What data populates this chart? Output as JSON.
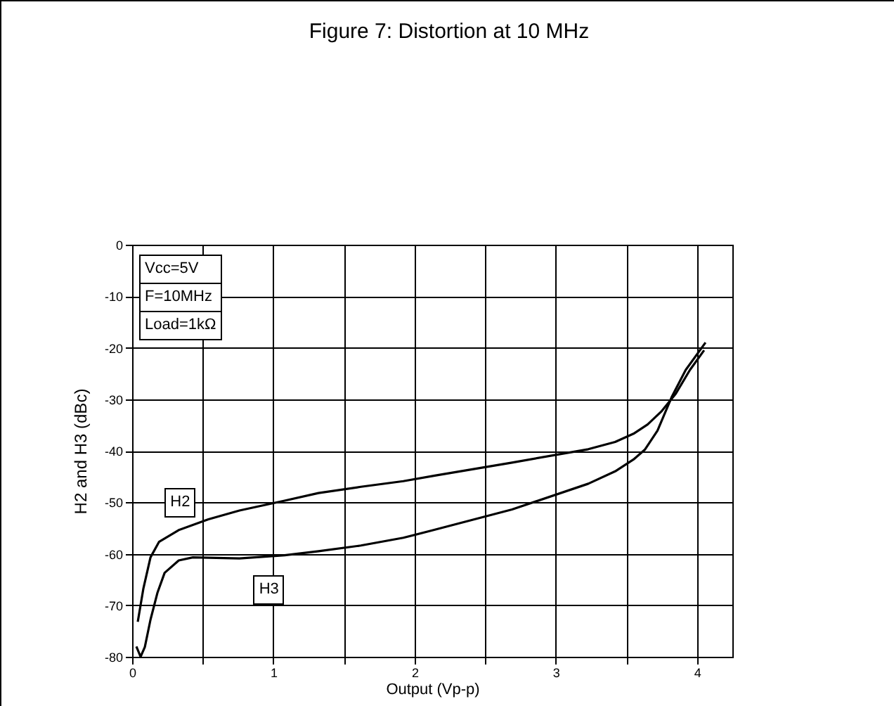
{
  "chart_data": {
    "type": "line",
    "title": "Figure 7: Distortion at 10 MHz",
    "xlabel": "Output  (Vp-p)",
    "ylabel": "H2 and H3  (dBc)",
    "annotations": [
      "Vcc=5V",
      "F=10MHz",
      "Load=1kΩ"
    ],
    "xlim": [
      0,
      4.25
    ],
    "xticks": [
      0,
      {
        "value": 0.5,
        "label": null
      },
      1,
      {
        "value": 1.5,
        "label": null
      },
      2,
      {
        "value": 2.5,
        "label": null
      },
      3,
      {
        "value": 3.5,
        "label": null
      },
      4
    ],
    "ylim": [
      -80,
      0
    ],
    "yticks": [
      -80,
      -70,
      -60,
      -50,
      -40,
      -30,
      -20,
      -10,
      0
    ],
    "grid": true,
    "legend": false,
    "marker": "none",
    "line_style": "solid",
    "series": [
      {
        "name": "H2",
        "color": "#000000",
        "x": [
          0.04,
          0.08,
          0.13,
          0.19,
          0.33,
          0.54,
          0.76,
          1.08,
          1.32,
          1.62,
          1.92,
          2.15,
          2.69,
          3.23,
          3.42,
          3.55,
          3.65,
          3.75,
          3.85,
          3.95,
          4.05
        ],
        "values": [
          -73.2,
          -66.7,
          -60.7,
          -57.7,
          -55.4,
          -53.3,
          -51.6,
          -49.7,
          -48.2,
          -47,
          -45.9,
          -44.8,
          -42.3,
          -39.7,
          -38.3,
          -36.7,
          -34.9,
          -32.3,
          -28.9,
          -24.3,
          -20.5
        ]
      },
      {
        "name": "H3",
        "color": "#000000",
        "x": [
          0.03,
          0.06,
          0.09,
          0.13,
          0.18,
          0.23,
          0.33,
          0.43,
          0.76,
          1.08,
          1.32,
          1.62,
          1.92,
          2.12,
          2.69,
          3.23,
          3.42,
          3.55,
          3.63,
          3.72,
          3.82,
          3.92,
          4.06
        ],
        "values": [
          -78,
          -80,
          -78.1,
          -72.8,
          -67.5,
          -63.7,
          -61.3,
          -60.7,
          -60.9,
          -60.3,
          -59.5,
          -58.4,
          -56.9,
          -55.5,
          -51.4,
          -46.4,
          -44,
          -41.7,
          -39.8,
          -36.1,
          -29.6,
          -24.3,
          -19
        ]
      }
    ]
  }
}
